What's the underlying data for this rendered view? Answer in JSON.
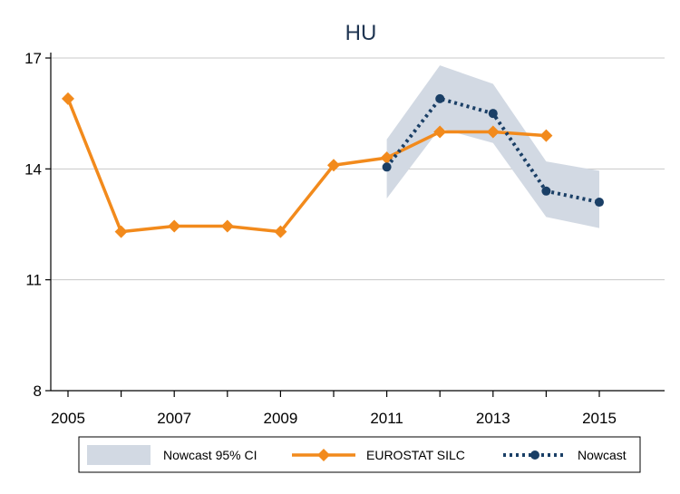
{
  "chart_data": {
    "type": "line",
    "title": "HU",
    "xlabel": "",
    "ylabel": "",
    "xlim": [
      2005,
      2016
    ],
    "ylim": [
      8,
      17
    ],
    "x_ticks": [
      2005,
      2007,
      2009,
      2011,
      2013,
      2015
    ],
    "y_ticks": [
      8,
      11,
      14,
      17
    ],
    "grid": "horizontal",
    "legend_position": "bottom",
    "series": [
      {
        "name": "Nowcast 95% CI",
        "kind": "band",
        "color": "#d2d9e3",
        "x": [
          2011,
          2012,
          2013,
          2014,
          2015
        ],
        "lower": [
          13.2,
          15.1,
          14.7,
          12.7,
          12.4
        ],
        "upper": [
          14.8,
          16.8,
          16.3,
          14.2,
          13.95
        ]
      },
      {
        "name": "EUROSTAT SILC",
        "kind": "line",
        "color": "#f28a1c",
        "marker": "diamond",
        "x": [
          2005,
          2006,
          2007,
          2008,
          2009,
          2010,
          2011,
          2012,
          2013,
          2014
        ],
        "y": [
          15.9,
          12.3,
          12.45,
          12.45,
          12.3,
          14.1,
          14.3,
          15.0,
          15.0,
          14.9
        ]
      },
      {
        "name": "Nowcast",
        "kind": "line",
        "style": "dotted",
        "color": "#1a3f66",
        "marker": "circle",
        "x": [
          2011,
          2012,
          2013,
          2014,
          2015
        ],
        "y": [
          14.05,
          15.9,
          15.5,
          13.4,
          13.1
        ]
      }
    ]
  }
}
